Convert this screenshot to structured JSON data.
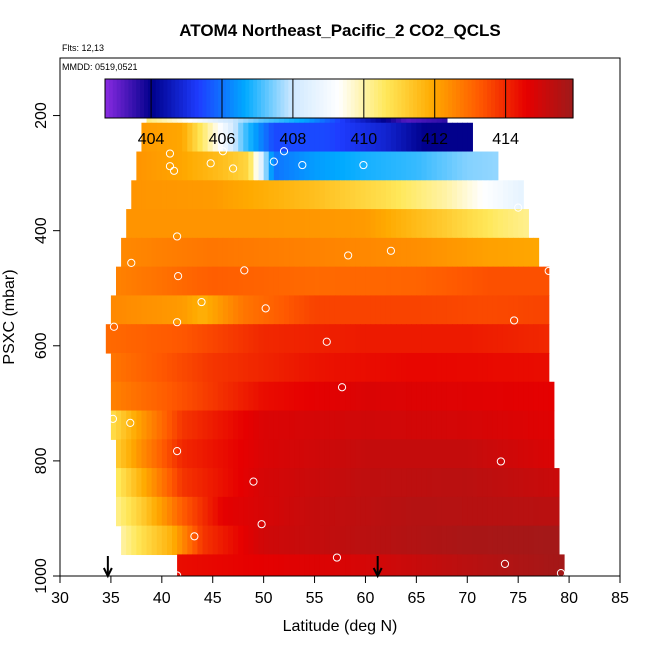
{
  "chart_data": {
    "type": "heatmap",
    "title": "ATOM4 Northeast_Pacific_2 CO2_QCLS",
    "flights_label": "Flts: 12,13",
    "dates_label": "MMDD: 0519,0521",
    "xlabel": "Latitude (deg N)",
    "ylabel": "PSXC (mbar)",
    "xlim": [
      30,
      85
    ],
    "ylim": [
      1000,
      100
    ],
    "y_inverted": true,
    "x_ticks": [
      30,
      35,
      40,
      45,
      50,
      55,
      60,
      65,
      70,
      75,
      80,
      85
    ],
    "y_ticks": [
      200,
      400,
      600,
      800,
      1000
    ],
    "colorbar": {
      "range": [
        402.7,
        415.9
      ],
      "ticks": [
        404,
        406,
        408,
        410,
        412,
        414
      ],
      "colors": [
        "#8a2be2",
        "#00008b",
        "#1e3cff",
        "#00aaff",
        "#cfe8ff",
        "#ffffff",
        "#ffe85a",
        "#ffaa00",
        "#ff5a00",
        "#e60000",
        "#9e1a1a"
      ]
    },
    "rows": [
      {
        "p": 187.5,
        "lat0": 38.5,
        "lat1": 68.0,
        "vals": [
          [
            38.5,
            410.4
          ],
          [
            42,
            409.5
          ],
          [
            46,
            408.2
          ],
          [
            50,
            407.2
          ],
          [
            54,
            406.6
          ],
          [
            58,
            405.2
          ],
          [
            62,
            404.0
          ],
          [
            64,
            403.2
          ],
          [
            68,
            403.6
          ]
        ]
      },
      {
        "p": 237.5,
        "lat0": 38.0,
        "lat1": 70.5,
        "vals": [
          [
            38,
            412.2
          ],
          [
            42,
            412.0
          ],
          [
            46,
            409.0
          ],
          [
            48,
            407.2
          ],
          [
            51,
            405.5
          ],
          [
            56,
            405.5
          ],
          [
            62,
            404.8
          ],
          [
            66,
            404.0
          ],
          [
            70.5,
            404.0
          ]
        ]
      },
      {
        "p": 287.5,
        "lat0": 37.5,
        "lat1": 73.0,
        "vals": [
          [
            37.5,
            412.3
          ],
          [
            42,
            412.0
          ],
          [
            46,
            411.5
          ],
          [
            48.5,
            411.0
          ],
          [
            51,
            406.0
          ],
          [
            55,
            406.5
          ],
          [
            60,
            406.8
          ],
          [
            65,
            407.0
          ],
          [
            70,
            407.5
          ],
          [
            73,
            407.6
          ]
        ]
      },
      {
        "p": 337.5,
        "lat0": 37.0,
        "lat1": 75.5,
        "vals": [
          [
            37,
            412.3
          ],
          [
            45,
            412.2
          ],
          [
            55,
            411.5
          ],
          [
            62,
            410.8
          ],
          [
            68,
            410.0
          ],
          [
            72,
            409.2
          ],
          [
            75.5,
            408.6
          ]
        ]
      },
      {
        "p": 387.5,
        "lat0": 36.5,
        "lat1": 76.0,
        "vals": [
          [
            36.5,
            412.3
          ],
          [
            50,
            412.3
          ],
          [
            60,
            412.2
          ],
          [
            68,
            411.2
          ],
          [
            73,
            410.5
          ],
          [
            76,
            410.2
          ]
        ]
      },
      {
        "p": 437.5,
        "lat0": 36.0,
        "lat1": 77.0,
        "vals": [
          [
            36,
            412.5
          ],
          [
            45,
            412.8
          ],
          [
            55,
            412.6
          ],
          [
            65,
            412.4
          ],
          [
            72,
            412.1
          ],
          [
            77,
            412.0
          ]
        ]
      },
      {
        "p": 487.5,
        "lat0": 35.5,
        "lat1": 78.0,
        "vals": [
          [
            35.5,
            412.6
          ],
          [
            45,
            413.2
          ],
          [
            55,
            413.0
          ],
          [
            65,
            413.1
          ],
          [
            72,
            413.4
          ],
          [
            78,
            413.4
          ]
        ]
      },
      {
        "p": 537.5,
        "lat0": 35.0,
        "lat1": 78.0,
        "vals": [
          [
            35,
            412.5
          ],
          [
            42,
            412.2
          ],
          [
            44,
            411.8
          ],
          [
            48,
            412.8
          ],
          [
            55,
            413.6
          ],
          [
            65,
            413.6
          ],
          [
            72,
            413.5
          ],
          [
            78,
            413.6
          ]
        ]
      },
      {
        "p": 587.5,
        "lat0": 34.5,
        "lat1": 78.0,
        "vals": [
          [
            34.5,
            413.0
          ],
          [
            42,
            413.3
          ],
          [
            50,
            414.0
          ],
          [
            60,
            414.2
          ],
          [
            70,
            414.2
          ],
          [
            78,
            414.0
          ]
        ]
      },
      {
        "p": 637.5,
        "lat0": 35.0,
        "lat1": 78.0,
        "vals": [
          [
            35,
            412.8
          ],
          [
            45,
            413.8
          ],
          [
            55,
            414.3
          ],
          [
            65,
            414.5
          ],
          [
            78,
            414.4
          ]
        ]
      },
      {
        "p": 687.5,
        "lat0": 35.0,
        "lat1": 78.5,
        "vals": [
          [
            35,
            412.6
          ],
          [
            42,
            413.4
          ],
          [
            50,
            414.4
          ],
          [
            60,
            414.8
          ],
          [
            70,
            414.7
          ],
          [
            78.5,
            414.6
          ]
        ]
      },
      {
        "p": 737.5,
        "lat0": 35.0,
        "lat1": 78.5,
        "vals": [
          [
            35,
            410.8
          ],
          [
            38,
            412.2
          ],
          [
            42,
            413.8
          ],
          [
            50,
            414.8
          ],
          [
            60,
            415.0
          ],
          [
            70,
            414.9
          ],
          [
            78.5,
            414.7
          ]
        ]
      },
      {
        "p": 787.5,
        "lat0": 35.5,
        "lat1": 78.5,
        "vals": [
          [
            35.5,
            411.2
          ],
          [
            38,
            412.4
          ],
          [
            42,
            414.0
          ],
          [
            50,
            414.8
          ],
          [
            60,
            415.2
          ],
          [
            70,
            415.2
          ],
          [
            78.5,
            414.8
          ]
        ]
      },
      {
        "p": 837.5,
        "lat0": 35.5,
        "lat1": 79.0,
        "vals": [
          [
            35.5,
            410.5
          ],
          [
            38,
            411.8
          ],
          [
            42,
            413.8
          ],
          [
            50,
            414.9
          ],
          [
            60,
            415.3
          ],
          [
            70,
            415.4
          ],
          [
            79,
            415.1
          ]
        ]
      },
      {
        "p": 887.5,
        "lat0": 35.5,
        "lat1": 79.0,
        "vals": [
          [
            35.5,
            410.2
          ],
          [
            38,
            411.2
          ],
          [
            42,
            413.2
          ],
          [
            46,
            414.6
          ],
          [
            55,
            415.2
          ],
          [
            65,
            415.5
          ],
          [
            79,
            415.4
          ]
        ]
      },
      {
        "p": 937.5,
        "lat0": 36.0,
        "lat1": 79.0,
        "vals": [
          [
            36,
            410.0
          ],
          [
            38,
            410.8
          ],
          [
            41,
            411.8
          ],
          [
            44,
            413.8
          ],
          [
            50,
            415.0
          ],
          [
            60,
            415.4
          ],
          [
            70,
            415.7
          ],
          [
            79,
            415.8
          ]
        ]
      },
      {
        "p": 987.5,
        "lat0": 41.5,
        "lat1": 79.5,
        "vals": [
          [
            41.5,
            414.4
          ],
          [
            50,
            414.6
          ],
          [
            60,
            414.9
          ],
          [
            70,
            415.4
          ],
          [
            79.5,
            415.8
          ]
        ]
      }
    ],
    "points": [
      [
        63.4,
        188
      ],
      [
        65.3,
        188
      ],
      [
        66.5,
        188
      ],
      [
        67.6,
        188
      ],
      [
        40.8,
        266
      ],
      [
        46.0,
        262
      ],
      [
        44.8,
        283
      ],
      [
        47.0,
        292
      ],
      [
        52.0,
        262
      ],
      [
        51.0,
        280
      ],
      [
        53.8,
        286
      ],
      [
        59.8,
        286
      ],
      [
        40.8,
        288
      ],
      [
        41.2,
        296
      ],
      [
        75.0,
        360
      ],
      [
        41.5,
        410
      ],
      [
        37.0,
        456
      ],
      [
        58.3,
        443
      ],
      [
        62.5,
        435
      ],
      [
        48.1,
        469
      ],
      [
        41.6,
        479
      ],
      [
        78.0,
        470
      ],
      [
        43.9,
        524
      ],
      [
        50.2,
        535
      ],
      [
        41.5,
        559
      ],
      [
        35.3,
        567
      ],
      [
        74.6,
        556
      ],
      [
        56.2,
        593
      ],
      [
        57.7,
        672
      ],
      [
        35.2,
        727
      ],
      [
        36.9,
        734
      ],
      [
        41.5,
        783
      ],
      [
        73.3,
        801
      ],
      [
        49.0,
        836
      ],
      [
        49.8,
        910
      ],
      [
        43.2,
        931
      ],
      [
        57.2,
        968
      ],
      [
        73.7,
        979
      ],
      [
        41.5,
        999
      ],
      [
        79.2,
        995
      ]
    ],
    "markers": [
      {
        "lat": 34.7,
        "label": "↓"
      },
      {
        "lat": 61.2,
        "label": "↓"
      }
    ]
  }
}
